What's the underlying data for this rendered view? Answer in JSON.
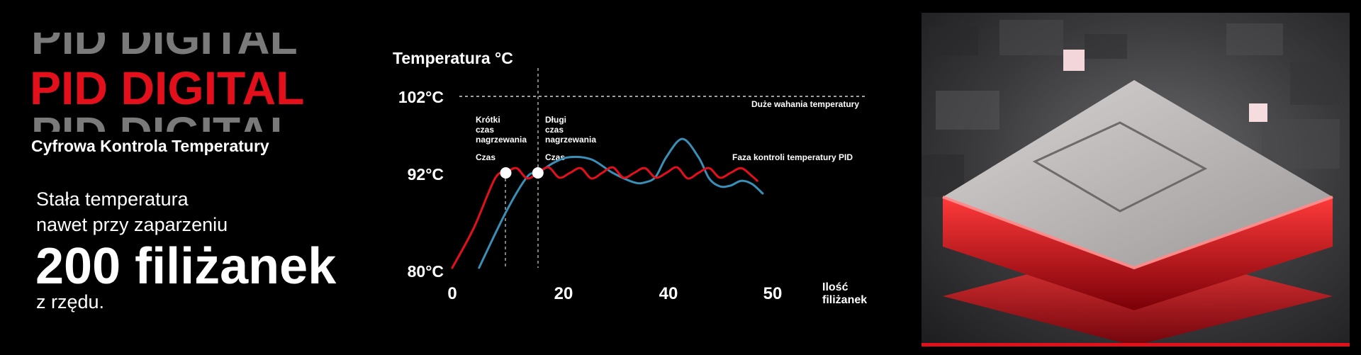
{
  "branding": {
    "ghost_top": "PID DIGITAL",
    "title": "PID DIGITAL",
    "ghost_bottom": "PID DIGITAL",
    "subtitle": "Cyfrowa Kontrola Temperatury",
    "line1": "Stała temperatura",
    "line2": "nawet przy zaparzeniu",
    "big": "200 filiżanek",
    "line3": "z rzędu.",
    "accent_color": "#e3101b"
  },
  "chart_data": {
    "type": "line",
    "ylabel": "Temperatura °C",
    "xlabel": "Ilość filiżanek",
    "xlabel_lines": [
      "Ilość",
      "filiżanek"
    ],
    "y_ticks": [
      "102°C",
      "92°C",
      "80°C"
    ],
    "x_ticks": [
      "0",
      "20",
      "40",
      "50"
    ],
    "reference_line": {
      "y": 102,
      "label": "Duże wahania temperatury"
    },
    "markers": [
      {
        "x": 10,
        "label_lines": [
          "Krótki",
          "czas",
          "nagrzewania"
        ],
        "time_label": "Czas"
      },
      {
        "x": 16,
        "label_lines": [
          "Długi",
          "czas",
          "nagrzewania"
        ],
        "time_label": "Czas"
      }
    ],
    "annotations": [
      "Faza kontroli temperatury PID"
    ],
    "series": [
      {
        "color": "#e3101b",
        "points": [
          [
            0,
            80
          ],
          [
            4,
            85
          ],
          [
            8,
            91.3
          ],
          [
            10,
            92
          ],
          [
            12,
            92.6
          ],
          [
            14,
            91.3
          ],
          [
            16,
            92
          ],
          [
            18,
            92.7
          ],
          [
            20,
            91.4
          ],
          [
            22,
            92
          ],
          [
            24,
            92.6
          ],
          [
            26,
            91.3
          ],
          [
            28,
            92
          ],
          [
            30,
            92.7
          ],
          [
            32,
            91.4
          ],
          [
            34,
            92
          ],
          [
            36,
            92.6
          ],
          [
            38,
            91.4
          ],
          [
            40,
            92
          ],
          [
            42,
            92.7
          ],
          [
            44,
            91.3
          ],
          [
            46,
            92
          ],
          [
            48,
            92.6
          ],
          [
            50,
            91.4
          ],
          [
            52,
            92
          ],
          [
            54,
            92.6
          ],
          [
            56,
            91.6
          ],
          [
            57,
            91
          ]
        ]
      },
      {
        "color": "#3a8fb7",
        "points": [
          [
            5,
            80
          ],
          [
            10,
            87
          ],
          [
            14,
            91.5
          ],
          [
            16,
            92
          ],
          [
            19,
            93.3
          ],
          [
            22,
            94
          ],
          [
            26,
            93.7
          ],
          [
            30,
            92
          ],
          [
            34,
            90.8
          ],
          [
            36,
            90.8
          ],
          [
            38,
            91.5
          ],
          [
            40,
            94
          ],
          [
            43,
            96.3
          ],
          [
            46,
            94
          ],
          [
            48,
            91.3
          ],
          [
            50,
            90.3
          ],
          [
            52,
            90.4
          ],
          [
            54,
            91
          ],
          [
            56,
            90.6
          ],
          [
            58,
            89.4
          ]
        ]
      }
    ]
  }
}
